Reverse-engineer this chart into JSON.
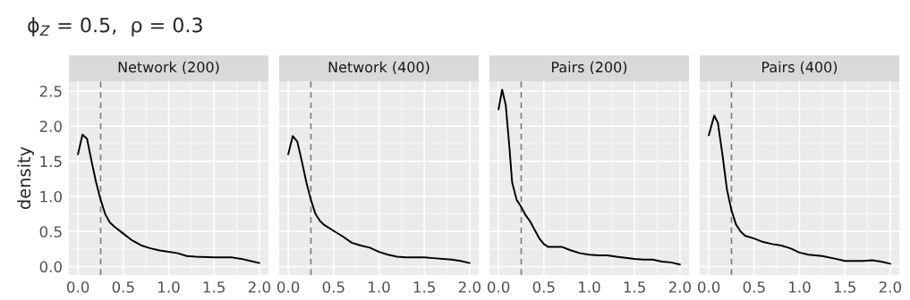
{
  "chart_data": [
    {
      "type": "line",
      "title": "Network (200)",
      "ylabel": "density",
      "annotations": [
        "ϕ$_{Z}$ = 0.5,  ρ = 0.3"
      ],
      "xlim": [
        -0.1,
        2.1
      ],
      "ylim": [
        -0.12,
        2.64
      ],
      "xticks": [
        {
          "value": 0,
          "label": "0.0"
        },
        {
          "value": 0.5,
          "label": "0.5"
        },
        {
          "value": 1,
          "label": "1.0"
        },
        {
          "value": 1.5,
          "label": "1.5"
        },
        {
          "value": 2,
          "label": "2.0"
        }
      ],
      "yticks": [
        {
          "value": 0,
          "label": "0.0"
        },
        {
          "value": 0.5,
          "label": "0.5"
        },
        {
          "value": 1,
          "label": "1.0"
        },
        {
          "value": 1.5,
          "label": "1.5"
        },
        {
          "value": 2,
          "label": "2.0"
        },
        {
          "value": 2.5,
          "label": "2.5"
        }
      ],
      "grid": true,
      "ref_lines": [
        {
          "axis": "x",
          "value": 0.25,
          "color": "#7f7f7f",
          "line_style": "dashed"
        }
      ],
      "series": [
        {
          "color": "#000000",
          "x": [
            0,
            0.05,
            0.1,
            0.15,
            0.2,
            0.25,
            0.3,
            0.35,
            0.4,
            0.5,
            0.6,
            0.7,
            0.8,
            0.9,
            1.0,
            1.1,
            1.2,
            1.3,
            1.5,
            1.7,
            1.8,
            1.9,
            2.0
          ],
          "values": [
            1.6,
            1.88,
            1.82,
            1.5,
            1.2,
            0.95,
            0.75,
            0.63,
            0.57,
            0.47,
            0.37,
            0.3,
            0.26,
            0.23,
            0.21,
            0.19,
            0.15,
            0.14,
            0.13,
            0.13,
            0.11,
            0.08,
            0.05
          ]
        }
      ]
    },
    {
      "type": "line",
      "title": "Network (400)",
      "xlim": [
        -0.1,
        2.1
      ],
      "ylim": [
        -0.12,
        2.64
      ],
      "xticks": [
        {
          "value": 0,
          "label": "0.0"
        },
        {
          "value": 0.5,
          "label": "0.5"
        },
        {
          "value": 1,
          "label": "1.0"
        },
        {
          "value": 1.5,
          "label": "1.5"
        },
        {
          "value": 2,
          "label": "2.0"
        }
      ],
      "yticks": [
        0,
        0.5,
        1,
        1.5,
        2,
        2.5
      ],
      "grid": true,
      "tick_labels": "x",
      "ref_lines": [
        {
          "axis": "x",
          "value": 0.25,
          "color": "#7f7f7f",
          "line_style": "dashed"
        }
      ],
      "series": [
        {
          "color": "#000000",
          "x": [
            0,
            0.05,
            0.1,
            0.15,
            0.2,
            0.25,
            0.3,
            0.35,
            0.4,
            0.5,
            0.6,
            0.7,
            0.8,
            0.9,
            1.0,
            1.1,
            1.2,
            1.3,
            1.5,
            1.6,
            1.8,
            1.9,
            2.0
          ],
          "values": [
            1.6,
            1.86,
            1.78,
            1.5,
            1.2,
            0.95,
            0.75,
            0.65,
            0.59,
            0.51,
            0.43,
            0.34,
            0.3,
            0.27,
            0.21,
            0.17,
            0.14,
            0.13,
            0.13,
            0.12,
            0.1,
            0.08,
            0.05
          ]
        }
      ]
    },
    {
      "type": "line",
      "title": "Pairs (200)",
      "xlim": [
        -0.1,
        2.1
      ],
      "ylim": [
        -0.12,
        2.64
      ],
      "xticks": [
        {
          "value": 0,
          "label": "0.0"
        },
        {
          "value": 0.5,
          "label": "0.5"
        },
        {
          "value": 1,
          "label": "1.0"
        },
        {
          "value": 1.5,
          "label": "1.5"
        },
        {
          "value": 2,
          "label": "2.0"
        }
      ],
      "yticks": [
        0,
        0.5,
        1,
        1.5,
        2,
        2.5
      ],
      "grid": true,
      "tick_labels": "x",
      "ref_lines": [
        {
          "axis": "x",
          "value": 0.25,
          "color": "#7f7f7f",
          "line_style": "dashed"
        }
      ],
      "series": [
        {
          "color": "#000000",
          "x": [
            0,
            0.04,
            0.08,
            0.12,
            0.15,
            0.2,
            0.25,
            0.3,
            0.35,
            0.4,
            0.45,
            0.5,
            0.55,
            0.6,
            0.7,
            0.8,
            0.9,
            1.0,
            1.1,
            1.2,
            1.3,
            1.5,
            1.6,
            1.7,
            1.8,
            1.9,
            2.0
          ],
          "values": [
            2.24,
            2.52,
            2.3,
            1.7,
            1.2,
            0.95,
            0.85,
            0.73,
            0.64,
            0.52,
            0.4,
            0.32,
            0.28,
            0.28,
            0.28,
            0.23,
            0.19,
            0.17,
            0.16,
            0.16,
            0.14,
            0.11,
            0.1,
            0.1,
            0.07,
            0.06,
            0.03
          ]
        }
      ]
    },
    {
      "type": "line",
      "title": "Pairs (400)",
      "xlim": [
        -0.1,
        2.1
      ],
      "ylim": [
        -0.12,
        2.64
      ],
      "xticks": [
        {
          "value": 0,
          "label": "0.0"
        },
        {
          "value": 0.5,
          "label": "0.5"
        },
        {
          "value": 1,
          "label": "1.0"
        },
        {
          "value": 1.5,
          "label": "1.5"
        },
        {
          "value": 2,
          "label": "2.0"
        }
      ],
      "yticks": [
        0,
        0.5,
        1,
        1.5,
        2,
        2.5
      ],
      "grid": true,
      "tick_labels": "x",
      "ref_lines": [
        {
          "axis": "x",
          "value": 0.25,
          "color": "#7f7f7f",
          "line_style": "dashed"
        }
      ],
      "series": [
        {
          "color": "#000000",
          "x": [
            0,
            0.06,
            0.1,
            0.15,
            0.2,
            0.25,
            0.3,
            0.35,
            0.4,
            0.5,
            0.6,
            0.7,
            0.8,
            0.9,
            1.0,
            1.1,
            1.25,
            1.4,
            1.5,
            1.7,
            1.8,
            1.9,
            2.0
          ],
          "values": [
            1.87,
            2.15,
            2.05,
            1.6,
            1.1,
            0.8,
            0.6,
            0.5,
            0.44,
            0.4,
            0.35,
            0.32,
            0.3,
            0.26,
            0.2,
            0.17,
            0.15,
            0.11,
            0.08,
            0.08,
            0.09,
            0.07,
            0.04
          ]
        }
      ]
    }
  ]
}
